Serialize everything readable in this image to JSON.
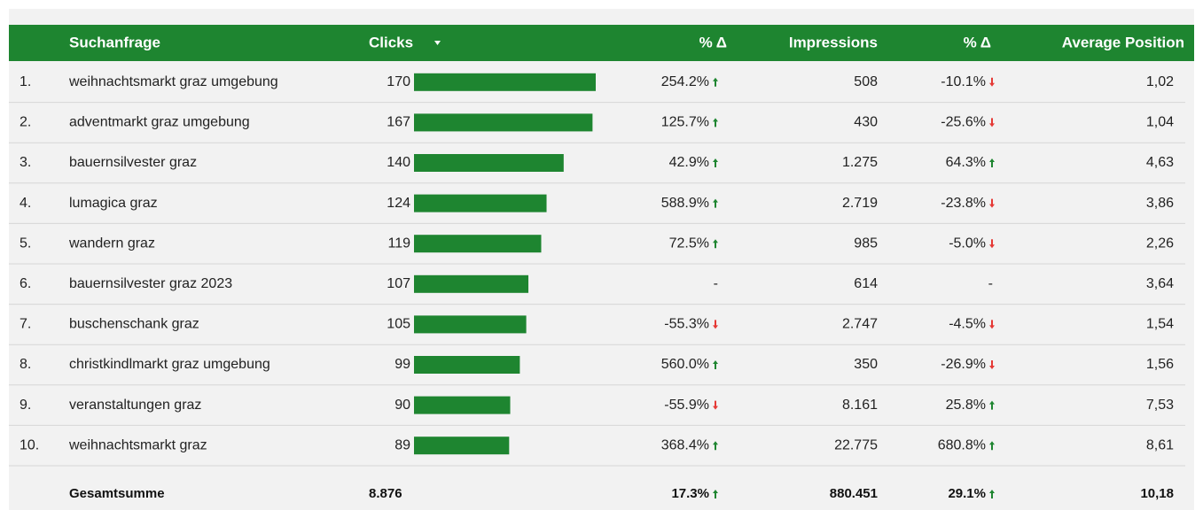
{
  "table": {
    "header": {
      "rank": "",
      "query": "Suchanfrage",
      "clicks": "Clicks",
      "clicks_delta": "% Δ",
      "impressions": "Impressions",
      "impressions_delta": "% Δ",
      "position": "Average Position"
    },
    "rows": [
      {
        "rank": "1.",
        "query": "weihnachtsmarkt graz umgebung",
        "clicks": 170,
        "clicks_delta": "254.2%",
        "impressions": "508",
        "impressions_delta": "-10.1%",
        "position": "1,02"
      },
      {
        "rank": "2.",
        "query": "adventmarkt graz umgebung",
        "clicks": 167,
        "clicks_delta": "125.7%",
        "impressions": "430",
        "impressions_delta": "-25.6%",
        "position": "1,04"
      },
      {
        "rank": "3.",
        "query": "bauernsilvester graz",
        "clicks": 140,
        "clicks_delta": "42.9%",
        "impressions": "1.275",
        "impressions_delta": "64.3%",
        "position": "4,63"
      },
      {
        "rank": "4.",
        "query": "lumagica graz",
        "clicks": 124,
        "clicks_delta": "588.9%",
        "impressions": "2.719",
        "impressions_delta": "-23.8%",
        "position": "3,86"
      },
      {
        "rank": "5.",
        "query": "wandern graz",
        "clicks": 119,
        "clicks_delta": "72.5%",
        "impressions": "985",
        "impressions_delta": "-5.0%",
        "position": "2,26"
      },
      {
        "rank": "6.",
        "query": "bauernsilvester graz 2023",
        "clicks": 107,
        "clicks_delta": "-",
        "impressions": "614",
        "impressions_delta": "-",
        "position": "3,64"
      },
      {
        "rank": "7.",
        "query": "buschenschank graz",
        "clicks": 105,
        "clicks_delta": "-55.3%",
        "impressions": "2.747",
        "impressions_delta": "-4.5%",
        "position": "1,54"
      },
      {
        "rank": "8.",
        "query": "christkindlmarkt graz umgebung",
        "clicks": 99,
        "clicks_delta": "560.0%",
        "impressions": "350",
        "impressions_delta": "-26.9%",
        "position": "1,56"
      },
      {
        "rank": "9.",
        "query": "veranstaltungen graz",
        "clicks": 90,
        "clicks_delta": "-55.9%",
        "impressions": "8.161",
        "impressions_delta": "25.8%",
        "position": "7,53"
      },
      {
        "rank": "10.",
        "query": "weihnachtsmarkt graz",
        "clicks": 89,
        "clicks_delta": "368.4%",
        "impressions": "22.775",
        "impressions_delta": "680.8%",
        "position": "8,61"
      }
    ],
    "total": {
      "query": "Gesamtsumme",
      "clicks": "8.876",
      "clicks_delta": "17.3%",
      "impressions": "880.451",
      "impressions_delta": "29.1%",
      "position": "10,18"
    },
    "bar_color": "#1e8530"
  }
}
